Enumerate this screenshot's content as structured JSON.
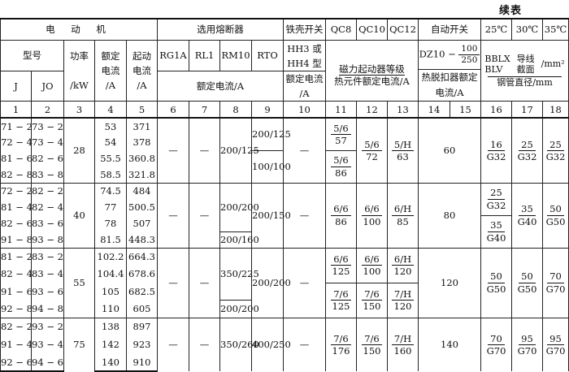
{
  "continued_label": "续表",
  "header": {
    "motor": "电 动 机",
    "fuse": "选用熔断器",
    "iron_switch": "铁壳开关",
    "qc8": "QC8",
    "qc10": "QC10",
    "qc12": "QC12",
    "auto_switch": "自动开关",
    "t25": "25℃",
    "t30": "30℃",
    "t35": "35℃",
    "model": "型号",
    "power": "功率",
    "power_unit": "/kW",
    "rated_current_1": "额定",
    "rated_current_2": "电流",
    "rated_current_3": "/A",
    "start_current_1": "起动",
    "start_current_2": "电流",
    "start_current_3": "/A",
    "rg1a": "RG1A",
    "rl1": "RL1",
    "rm10": "RM10",
    "rto": "RTO",
    "hh_1": "HH3 或",
    "hh_2": "HH4 型",
    "hh_3": "额定电流",
    "hh_4": "/A",
    "starter_grade": "磁力起动器等级",
    "thermal_rated": "热元件额定电流/A",
    "dz10": "DZ10 −",
    "dz10_num": "100",
    "dz10_den": "250",
    "trip_1": "热脱扣器额定",
    "trip_2": "电流/A",
    "bblx": "BBLX",
    "blv": "BLV",
    "wire_1": "导线",
    "wire_2": "截面",
    "wire_unit": "/mm²",
    "conduit": "钢管直径/mm",
    "j": "J",
    "jo": "JO",
    "fuse_rated": "额定电流/A",
    "col_numbers": [
      "1",
      "2",
      "3",
      "4",
      "5",
      "6",
      "7",
      "8",
      "9",
      "10",
      "11",
      "12",
      "13",
      "14",
      "15",
      "16",
      "17",
      "18"
    ]
  },
  "groups": [
    {
      "rows": 4,
      "J": [
        "71 − 2",
        "72 − 4",
        "81 − 6",
        "82 − 8"
      ],
      "JO": [
        "73 − 2",
        "73 − 4",
        "82 − 6",
        "83 − 8"
      ],
      "power": "28",
      "rated": [
        "53",
        "54",
        "55.5",
        "58.5"
      ],
      "start": [
        "371",
        "378",
        "360.8",
        "321.8"
      ],
      "rg1a": "—",
      "rl1": "—",
      "rm10": [
        {
          "span": 4,
          "v": "200/125"
        }
      ],
      "rto": [
        {
          "span": 2,
          "v": "200/125"
        },
        {
          "span": 2,
          "v": "100/100"
        }
      ],
      "hh": "—",
      "qc8": [
        {
          "span": 2,
          "n": "5/6",
          "d": "57"
        },
        {
          "span": 2,
          "n": "5/6",
          "d": "86"
        }
      ],
      "qc10": [
        {
          "span": 4,
          "n": "5/6",
          "d": "72"
        }
      ],
      "qc12": [
        {
          "span": 4,
          "n": "5/H",
          "d": "63"
        }
      ],
      "auto": "60",
      "w25": [
        {
          "span": 4,
          "n": "16",
          "d": "G32"
        }
      ],
      "w30": [
        {
          "span": 4,
          "n": "25",
          "d": "G32"
        }
      ],
      "w35": [
        {
          "span": 4,
          "n": "25",
          "d": "G32"
        }
      ]
    },
    {
      "rows": 4,
      "J": [
        "72 − 2",
        "81 − 4",
        "82 − 6",
        "91 − 8"
      ],
      "JO": [
        "82 − 2",
        "82 − 4",
        "83 − 6",
        "93 − 8"
      ],
      "power": "40",
      "rated": [
        "74.5",
        "77",
        "78",
        "81.5"
      ],
      "start": [
        "484",
        "500.5",
        "507",
        "448.3"
      ],
      "rg1a": "—",
      "rl1": "—",
      "rm10": [
        {
          "span": 3,
          "v": "200/200"
        },
        {
          "span": 1,
          "v": "200/160"
        }
      ],
      "rto": [
        {
          "span": 4,
          "v": "200/150"
        }
      ],
      "hh": "—",
      "qc8": [
        {
          "span": 4,
          "n": "6/6",
          "d": "86"
        }
      ],
      "qc10": [
        {
          "span": 4,
          "n": "6/6",
          "d": "100"
        }
      ],
      "qc12": [
        {
          "span": 4,
          "n": "6/H",
          "d": "85"
        }
      ],
      "auto": "80",
      "w25": [
        {
          "span": 2,
          "n": "25",
          "d": "G32"
        },
        {
          "span": 2,
          "n": "35",
          "d": "G40"
        }
      ],
      "w30": [
        {
          "span": 4,
          "n": "35",
          "d": "G40"
        }
      ],
      "w35": [
        {
          "span": 4,
          "n": "50",
          "d": "G50"
        }
      ]
    },
    {
      "rows": 4,
      "J": [
        "81 − 2",
        "82 − 4",
        "91 − 6",
        "92 − 8"
      ],
      "JO": [
        "83 − 2",
        "83 − 4",
        "93 − 6",
        "94 − 8"
      ],
      "power": "55",
      "rated": [
        "102.2",
        "104.4",
        "105",
        "110"
      ],
      "start": [
        "664.3",
        "678.6",
        "682.5",
        "605"
      ],
      "rg1a": "—",
      "rl1": "—",
      "rm10": [
        {
          "span": 3,
          "v": "350/225"
        },
        {
          "span": 1,
          "v": "200/200"
        }
      ],
      "rto": [
        {
          "span": 4,
          "v": "200/200"
        }
      ],
      "hh": "—",
      "qc8": [
        {
          "span": 2,
          "n": "6/6",
          "d": "125"
        },
        {
          "span": 2,
          "n": "7/6",
          "d": "125"
        }
      ],
      "qc10": [
        {
          "span": 2,
          "n": "6/6",
          "d": "100"
        },
        {
          "span": 2,
          "n": "7/6",
          "d": "150"
        }
      ],
      "qc12": [
        {
          "span": 2,
          "n": "6/H",
          "d": "120"
        },
        {
          "span": 2,
          "n": "7/H",
          "d": "120"
        }
      ],
      "auto": "120",
      "w25": [
        {
          "span": 4,
          "n": "50",
          "d": "G50"
        }
      ],
      "w30": [
        {
          "span": 4,
          "n": "50",
          "d": "G50"
        }
      ],
      "w35": [
        {
          "span": 4,
          "n": "70",
          "d": "G70"
        }
      ]
    },
    {
      "rows": 3,
      "J": [
        "82 − 2",
        "91 − 4",
        "92 − 6"
      ],
      "JO": [
        "93 − 2",
        "93 − 4",
        "94 − 6"
      ],
      "power": "75",
      "rated": [
        "138",
        "142",
        "140"
      ],
      "start": [
        "897",
        "923",
        "910"
      ],
      "rg1a": "—",
      "rl1": "—",
      "rm10": [
        {
          "span": 3,
          "v": "350/260"
        }
      ],
      "rto": [
        {
          "span": 3,
          "v": "400/250"
        }
      ],
      "hh": "—",
      "qc8": [
        {
          "span": 3,
          "n": "7/6",
          "d": "176"
        }
      ],
      "qc10": [
        {
          "span": 3,
          "n": "7/6",
          "d": "150"
        }
      ],
      "qc12": [
        {
          "span": 3,
          "n": "7/H",
          "d": "160"
        }
      ],
      "auto": "140",
      "w25": [
        {
          "span": 3,
          "n": "70",
          "d": "G70"
        }
      ],
      "w30": [
        {
          "span": 3,
          "n": "95",
          "d": "G70"
        }
      ],
      "w35": [
        {
          "span": 3,
          "n": "95",
          "d": "G70"
        }
      ]
    }
  ]
}
